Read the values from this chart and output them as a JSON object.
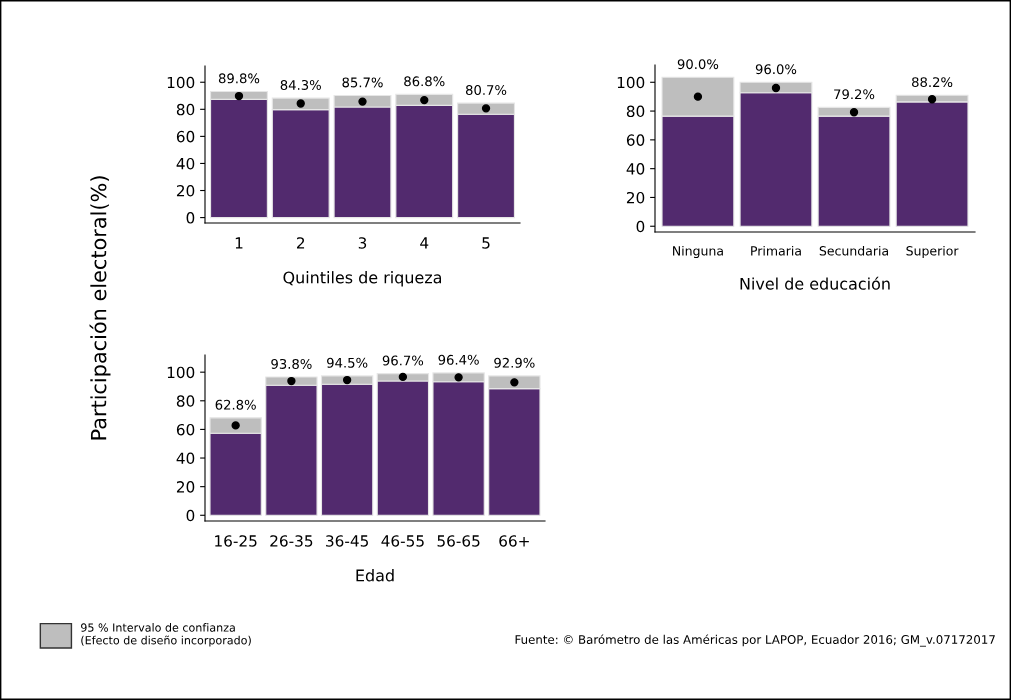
{
  "chart_data": [
    {
      "type": "bar",
      "stacked": true,
      "xlabel": "Quintiles de riqueza",
      "ylabel": "Participación electoral(%)",
      "categories": [
        "1",
        "2",
        "3",
        "4",
        "5"
      ],
      "ylim": [
        -4,
        112
      ],
      "yticks": [
        0,
        20,
        40,
        60,
        80,
        100
      ],
      "legend": "bottom left",
      "series": [
        {
          "color": "#522a6e",
          "values": [
            87.3,
            79.8,
            81.7,
            82.9,
            76.3
          ]
        },
        {
          "name": "95 % Intervalo de confianza\n(Efecto de diseño incorporado)",
          "color": "#bebebe",
          "values": [
            5.9,
            8.5,
            8.5,
            8.1,
            8.3
          ]
        },
        {
          "type": "scatter",
          "color": "#000000",
          "values": [
            89.8,
            84.3,
            85.7,
            86.8,
            80.7
          ],
          "value_labels": [
            "89.8%",
            "84.3%",
            "85.7%",
            "86.8%",
            "80.7%"
          ]
        }
      ]
    },
    {
      "type": "bar",
      "stacked": true,
      "xlabel": "Nivel de educación",
      "categories": [
        "Ninguna",
        "Primaria",
        "Secundaria",
        "Superior"
      ],
      "ylim": [
        -4,
        112
      ],
      "yticks": [
        0,
        20,
        40,
        60,
        80,
        100
      ],
      "series": [
        {
          "color": "#522a6e",
          "values": [
            76.5,
            92.7,
            76.5,
            86.4
          ]
        },
        {
          "color": "#bebebe",
          "values": [
            27.0,
            7.3,
            6.1,
            4.6
          ]
        },
        {
          "type": "scatter",
          "color": "#000000",
          "values": [
            90.0,
            96.0,
            79.2,
            88.2
          ],
          "value_labels": [
            "90.0%",
            "96.0%",
            "79.2%",
            "88.2%"
          ]
        }
      ]
    },
    {
      "type": "bar",
      "stacked": true,
      "xlabel": "Edad",
      "categories": [
        "16-25",
        "26-35",
        "36-45",
        "46-55",
        "56-65",
        "66+"
      ],
      "ylim": [
        -4,
        112
      ],
      "yticks": [
        0,
        20,
        40,
        60,
        80,
        100
      ],
      "annotations": [
        "Fuente: © Barómetro de las Américas por LAPOP, Ecuador 2016; GM_v.07172017"
      ],
      "series": [
        {
          "color": "#522a6e",
          "values": [
            57.3,
            90.9,
            91.6,
            93.8,
            93.3,
            88.5
          ]
        },
        {
          "color": "#bebebe",
          "values": [
            10.8,
            5.7,
            5.8,
            5.2,
            6.2,
            8.9
          ]
        },
        {
          "type": "scatter",
          "color": "#000000",
          "values": [
            62.8,
            93.8,
            94.5,
            96.7,
            96.4,
            92.9
          ],
          "value_labels": [
            "62.8%",
            "93.8%",
            "94.5%",
            "96.7%",
            "96.4%",
            "92.9%"
          ]
        }
      ]
    }
  ]
}
